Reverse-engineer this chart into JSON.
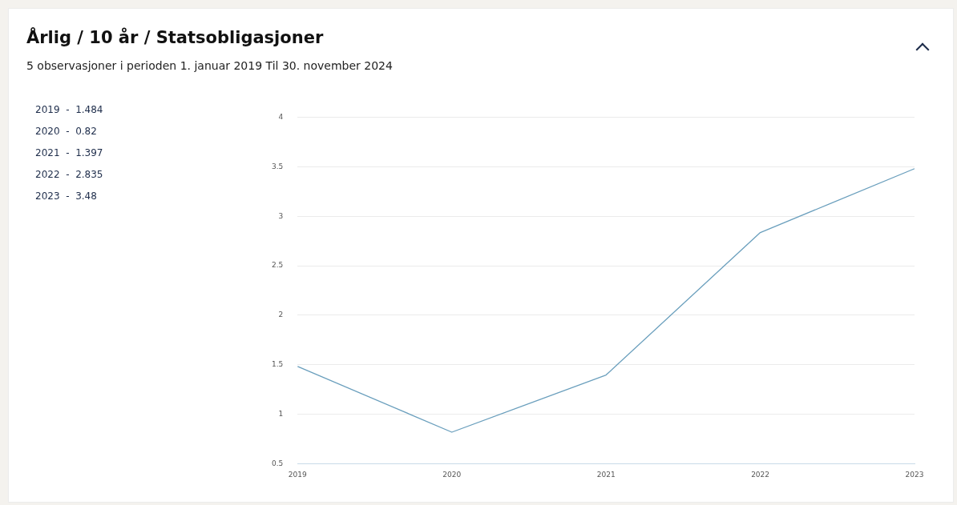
{
  "chart_data": {
    "type": "line",
    "title": "Årlig / 10 år / Statsobligasjoner",
    "subtitle": "5 observasjoner i perioden 1. januar 2019 Til 30. november 2024",
    "categories": [
      "2019",
      "2020",
      "2021",
      "2022",
      "2023"
    ],
    "series": [
      {
        "color": "#6a9fbd",
        "values": [
          1.484,
          0.82,
          1.397,
          2.835,
          3.48
        ]
      }
    ],
    "annotations": [
      "2019  -  1.484",
      "2020  -  0.82",
      "2021  -  1.397",
      "2022  -  2.835",
      "2023  -  3.48"
    ],
    "ylim": [
      0.5,
      4
    ],
    "yticks": [
      0.5,
      1,
      1.5,
      2,
      2.5,
      3,
      3.5,
      4
    ],
    "grid": "y",
    "legend": false,
    "marker": "none",
    "line_style": "solid"
  }
}
